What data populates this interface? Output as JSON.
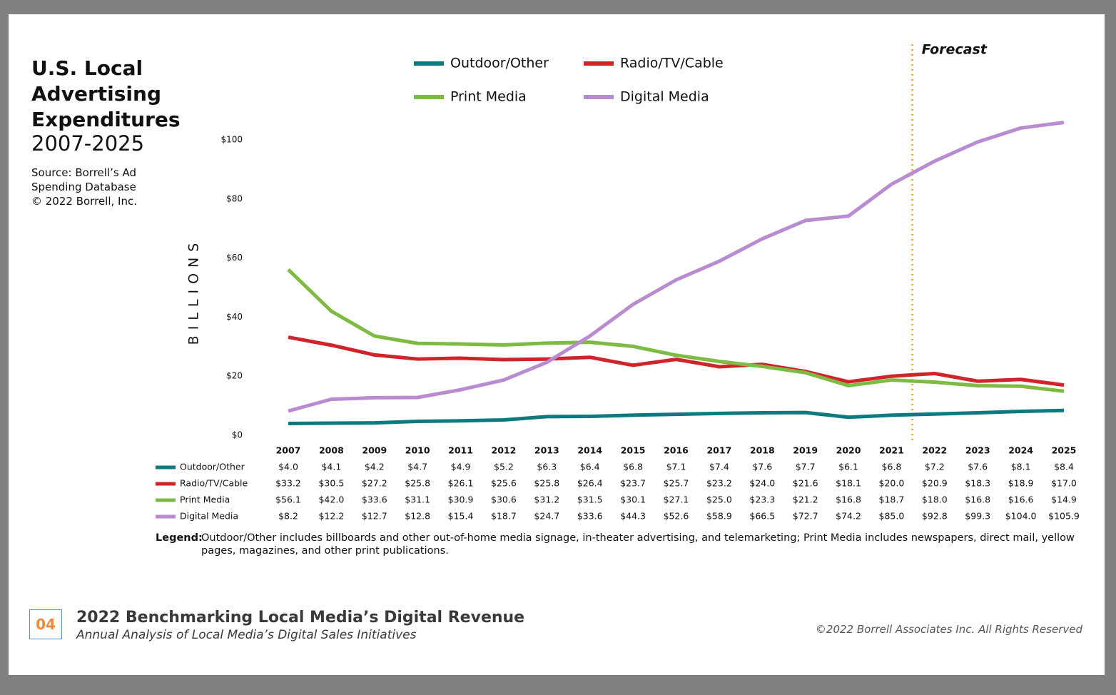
{
  "chart_data": {
    "type": "line",
    "title": "U.S. Local Advertising Expenditures",
    "subtitle": "2007-2025",
    "source": [
      "Source: Borrell’s Ad",
      "Spending Database",
      "© 2022 Borrell, Inc."
    ],
    "y_label": "BILLIONS",
    "annotation": "Forecast",
    "categories": [
      "2007",
      "2008",
      "2009",
      "2010",
      "2011",
      "2012",
      "2013",
      "2014",
      "2015",
      "2016",
      "2017",
      "2018",
      "2019",
      "2020",
      "2021",
      "2022",
      "2023",
      "2024",
      "2025"
    ],
    "series": [
      {
        "name": "Outdoor/Other",
        "color": "#0e7a80",
        "values": [
          4.0,
          4.1,
          4.2,
          4.7,
          4.9,
          5.2,
          6.3,
          6.4,
          6.8,
          7.1,
          7.4,
          7.6,
          7.7,
          6.1,
          6.8,
          7.2,
          7.6,
          8.1,
          8.4
        ],
        "value_labels": [
          "$4.0",
          "$4.1",
          "$4.2",
          "$4.7",
          "$4.9",
          "$5.2",
          "$6.3",
          "$6.4",
          "$6.8",
          "$7.1",
          "$7.4",
          "$7.6",
          "$7.7",
          "$6.1",
          "$6.8",
          "$7.2",
          "$7.6",
          "$8.1",
          "$8.4"
        ]
      },
      {
        "name": "Radio/TV/Cable",
        "color": "#d1232a",
        "values": [
          33.2,
          30.5,
          27.2,
          25.8,
          26.1,
          25.6,
          25.8,
          26.4,
          23.7,
          25.7,
          23.2,
          24.0,
          21.6,
          18.1,
          20.0,
          20.9,
          18.3,
          18.9,
          17.0
        ],
        "value_labels": [
          "$33.2",
          "$30.5",
          "$27.2",
          "$25.8",
          "$26.1",
          "$25.6",
          "$25.8",
          "$26.4",
          "$23.7",
          "$25.7",
          "$23.2",
          "$24.0",
          "$21.6",
          "$18.1",
          "$20.0",
          "$20.9",
          "$18.3",
          "$18.9",
          "$17.0"
        ]
      },
      {
        "name": "Print Media",
        "color": "#7dbb42",
        "values": [
          56.1,
          42.0,
          33.6,
          31.1,
          30.9,
          30.6,
          31.2,
          31.5,
          30.1,
          27.1,
          25.0,
          23.3,
          21.2,
          16.8,
          18.7,
          18.0,
          16.8,
          16.6,
          14.9
        ],
        "value_labels": [
          "$56.1",
          "$42.0",
          "$33.6",
          "$31.1",
          "$30.9",
          "$30.6",
          "$31.2",
          "$31.5",
          "$30.1",
          "$27.1",
          "$25.0",
          "$23.3",
          "$21.2",
          "$16.8",
          "$18.7",
          "$18.0",
          "$16.8",
          "$16.6",
          "$14.9"
        ]
      },
      {
        "name": "Digital Media",
        "color": "#b98bd0",
        "values": [
          8.2,
          12.2,
          12.7,
          12.8,
          15.4,
          18.7,
          24.7,
          33.6,
          44.3,
          52.6,
          58.9,
          66.5,
          72.7,
          74.2,
          85.0,
          92.8,
          99.3,
          104.0,
          105.9
        ],
        "value_labels": [
          "$8.2",
          "$12.2",
          "$12.7",
          "$12.8",
          "$15.4",
          "$18.7",
          "$24.7",
          "$33.6",
          "$44.3",
          "$52.6",
          "$58.9",
          "$66.5",
          "$72.7",
          "$74.2",
          "$85.0",
          "$92.8",
          "$99.3",
          "$104.0",
          "$105.9"
        ]
      }
    ],
    "ylim": [
      0,
      100
    ],
    "yticks": [
      {
        "value": 0,
        "label": "$0"
      },
      {
        "value": 20,
        "label": "$20"
      },
      {
        "value": 40,
        "label": "$40"
      },
      {
        "value": 60,
        "label": "$60"
      },
      {
        "value": 80,
        "label": "$80"
      },
      {
        "value": 100,
        "label": "$100"
      }
    ],
    "legend_note": {
      "label": "Legend:",
      "text": "Outdoor/Other includes billboards and other out-of-home media signage, in-theater advertising, and telemarketing; Print Media includes newspapers, direct mail, yellow pages, magazines, and other print publications."
    }
  },
  "footer": {
    "page_number": "04",
    "title": "2022 Benchmarking Local Media’s Digital Revenue",
    "subtitle": "Annual Analysis of Local Media’s Digital Sales Initiatives",
    "copyright": "©2022 Borrell Associates Inc. All Rights Reserved"
  }
}
